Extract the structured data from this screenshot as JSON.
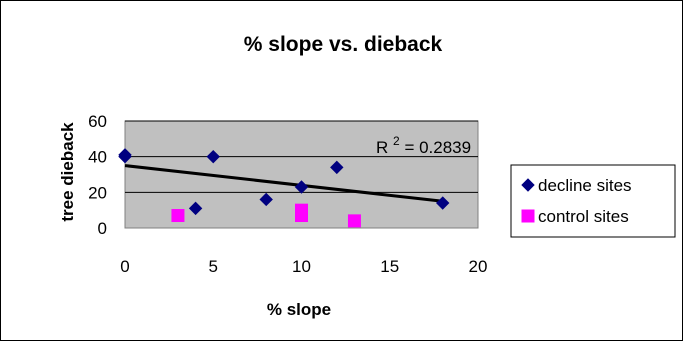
{
  "chart_data": {
    "type": "scatter",
    "title": "% slope vs. dieback",
    "xlabel": "% slope",
    "ylabel": "tree dieback",
    "xlim": [
      0,
      20
    ],
    "ylim": [
      0,
      60
    ],
    "x_ticks": [
      0,
      5,
      10,
      15,
      20
    ],
    "y_ticks": [
      0,
      20,
      40,
      60
    ],
    "grid": "horizontal",
    "plot_background": "#c0c0c0",
    "legend_position": "right",
    "series": [
      {
        "name": "decline sites",
        "marker": "diamond",
        "color": "#000080",
        "points": [
          {
            "x": 0,
            "y": 41
          },
          {
            "x": 0,
            "y": 40
          },
          {
            "x": 4,
            "y": 11
          },
          {
            "x": 5,
            "y": 40
          },
          {
            "x": 8,
            "y": 16
          },
          {
            "x": 10,
            "y": 23
          },
          {
            "x": 12,
            "y": 34
          },
          {
            "x": 18,
            "y": 14
          }
        ]
      },
      {
        "name": "control sites",
        "marker": "square",
        "color": "#ff00ff",
        "points": [
          {
            "x": 3,
            "y": 7
          },
          {
            "x": 10,
            "y": 10
          },
          {
            "x": 10,
            "y": 7
          },
          {
            "x": 13,
            "y": 4
          }
        ]
      }
    ],
    "trendline": {
      "series": "decline sites",
      "color": "#000000",
      "start": {
        "x": 0,
        "y": 35
      },
      "end": {
        "x": 18,
        "y": 15
      }
    },
    "annotation": {
      "r2_label": "R",
      "r2_exponent": "2",
      "r2_value": " = 0.2839"
    }
  }
}
